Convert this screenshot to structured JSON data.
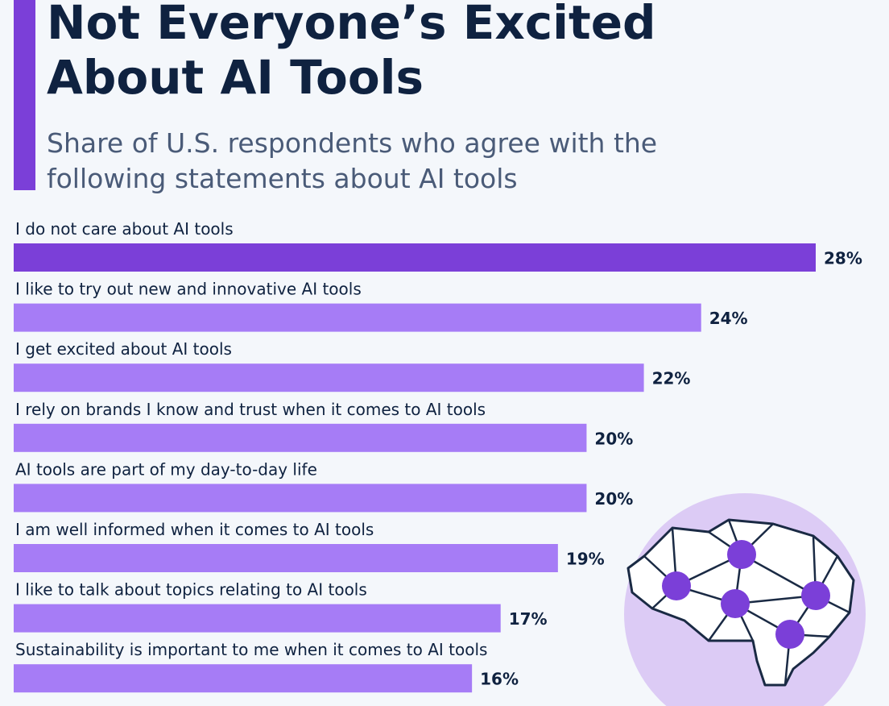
{
  "chart_data": {
    "type": "bar",
    "title": "Not Everyone’s Excited About AI Tools",
    "subtitle": "Share of U.S. respondents who agree with the following statements about AI tools",
    "categories": [
      "I do not care about AI tools",
      "I like to try out new and innovative AI tools",
      "I get excited about AI tools",
      "I rely on brands I know and trust when it comes to AI tools",
      "AI tools are part of my day-to-day life",
      "I am well informed when it comes to AI tools",
      "I like to talk about topics relating to AI tools",
      "Sustainability is important to me when it comes to AI tools"
    ],
    "values": [
      28,
      24,
      22,
      20,
      20,
      19,
      17,
      16
    ],
    "value_labels": [
      "28%",
      "24%",
      "22%",
      "20%",
      "20%",
      "19%",
      "17%",
      "16%"
    ],
    "colors": [
      "#7b3fd8",
      "#a67cf6",
      "#a67cf6",
      "#a67cf6",
      "#a67cf6",
      "#a67cf6",
      "#a67cf6",
      "#a67cf6"
    ]
  }
}
